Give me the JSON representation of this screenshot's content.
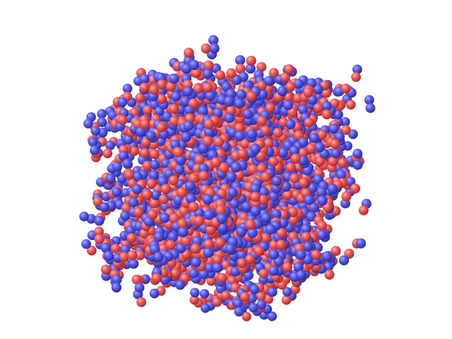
{
  "scene": {
    "background": "#ffffff",
    "subject": "molecular-cluster-cube",
    "atom_colors": {
      "primary": "#5a5ae6",
      "primary_highlight": "#a7a7ff",
      "primary_shadow": "#2a2a9a",
      "secondary": "#ec5a5a",
      "secondary_highlight": "#ffb0a8",
      "secondary_shadow": "#a3282b"
    }
  }
}
